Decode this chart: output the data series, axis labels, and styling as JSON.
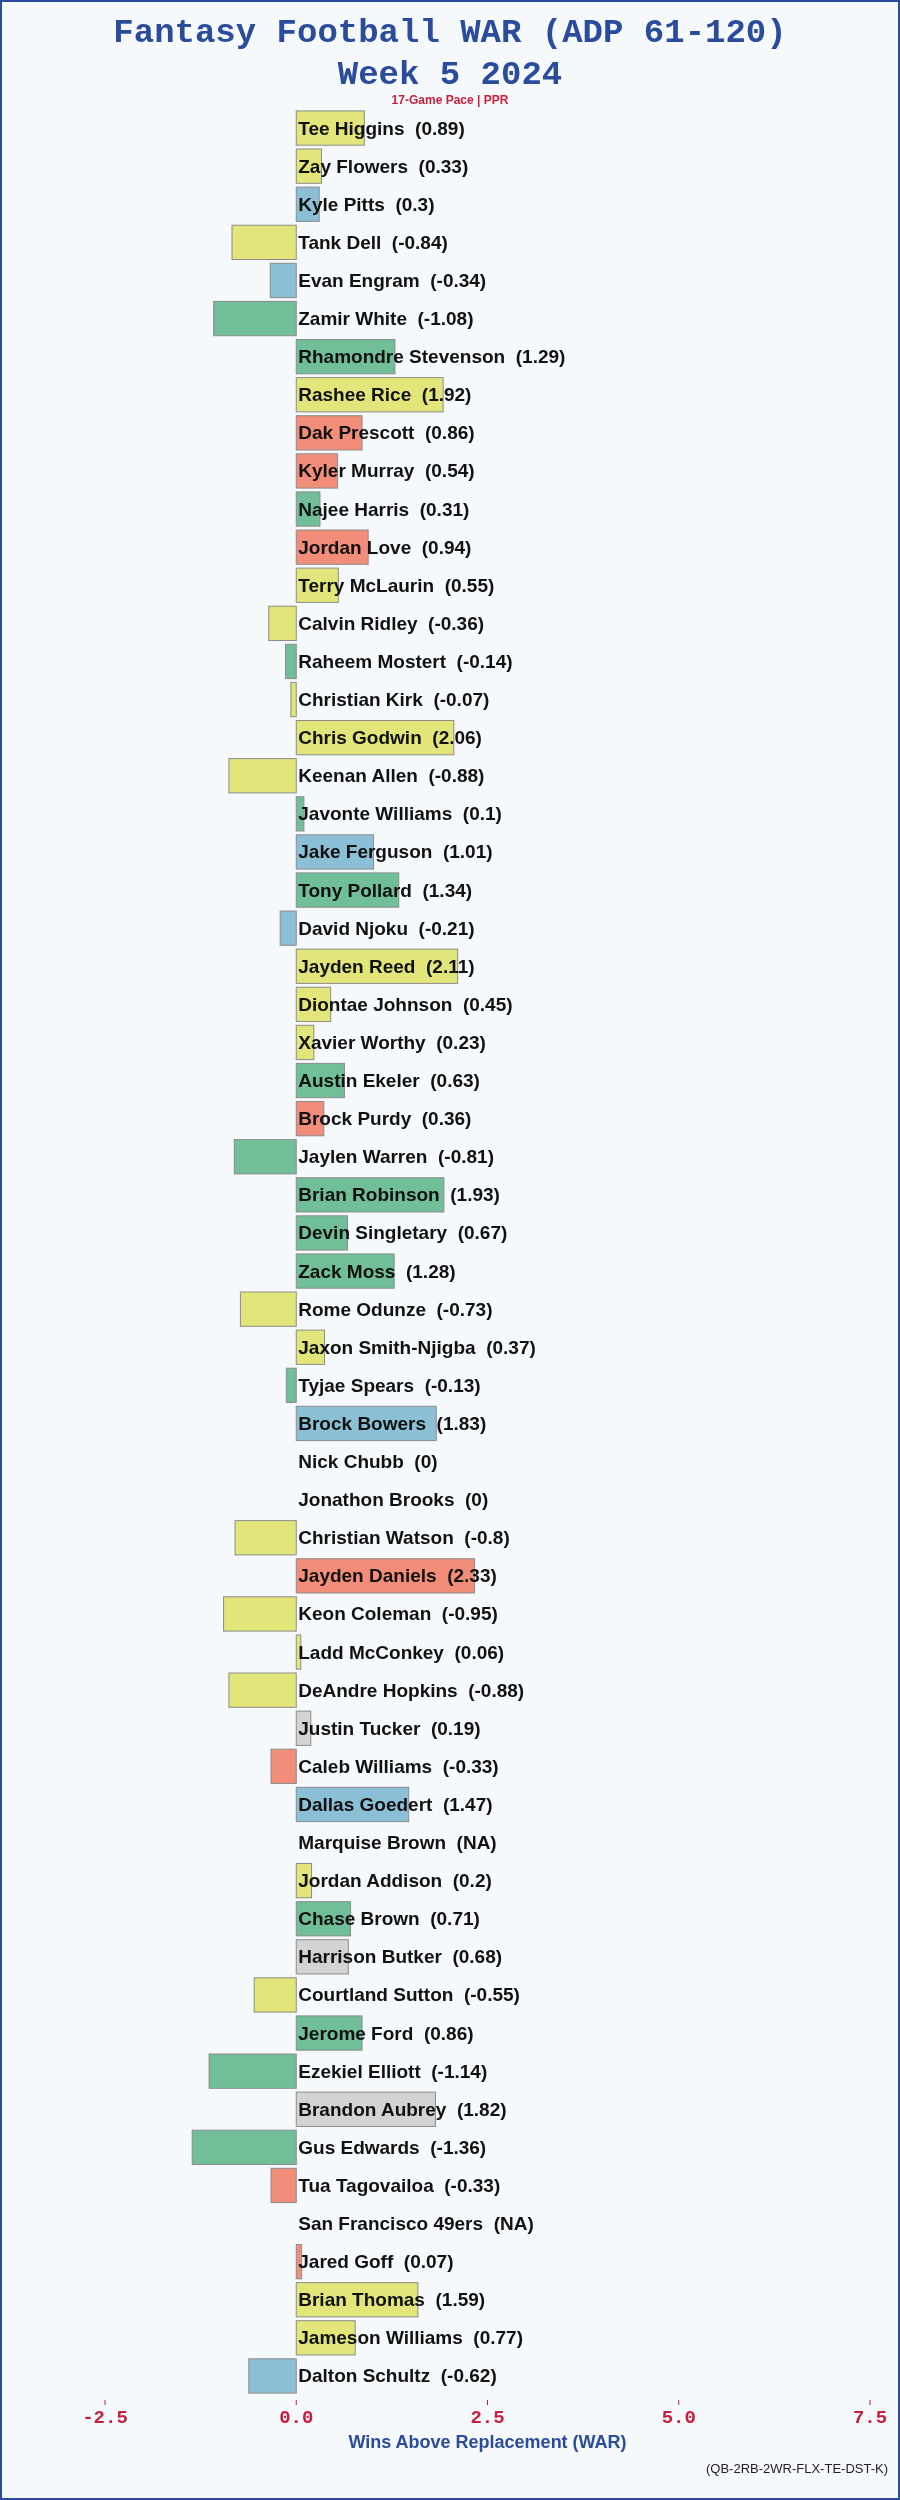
{
  "chart_data": {
    "type": "bar",
    "orientation": "horizontal",
    "title": "Fantasy Football WAR (ADP 61-120)\nWeek 5 2024",
    "subtitle": "17-Game Pace | PPR",
    "xlabel": "Wins Above Replacement (WAR)",
    "annotations": [
      "(QB-2RB-2WR-FLX-TE-DST-K)"
    ],
    "categories": [
      "Tee Higgins  (0.89)",
      "Zay Flowers  (0.33)",
      "Kyle Pitts  (0.3)",
      "Tank Dell  (-0.84)",
      "Evan Engram  (-0.34)",
      "Zamir White  (-1.08)",
      "Rhamondre Stevenson  (1.29)",
      "Rashee Rice  (1.92)",
      "Dak Prescott  (0.86)",
      "Kyler Murray  (0.54)",
      "Najee Harris  (0.31)",
      "Jordan Love  (0.94)",
      "Terry McLaurin  (0.55)",
      "Calvin Ridley  (-0.36)",
      "Raheem Mostert  (-0.14)",
      "Christian Kirk  (-0.07)",
      "Chris Godwin  (2.06)",
      "Keenan Allen  (-0.88)",
      "Javonte Williams  (0.1)",
      "Jake Ferguson  (1.01)",
      "Tony Pollard  (1.34)",
      "David Njoku  (-0.21)",
      "Jayden Reed  (2.11)",
      "Diontae Johnson  (0.45)",
      "Xavier Worthy  (0.23)",
      "Austin Ekeler  (0.63)",
      "Brock Purdy  (0.36)",
      "Jaylen Warren  (-0.81)",
      "Brian Robinson  (1.93)",
      "Devin Singletary  (0.67)",
      "Zack Moss  (1.28)",
      "Rome Odunze  (-0.73)",
      "Jaxon Smith-Njigba  (0.37)",
      "Tyjae Spears  (-0.13)",
      "Brock Bowers  (1.83)",
      "Nick Chubb  (0)",
      "Jonathon Brooks  (0)",
      "Christian Watson  (-0.8)",
      "Jayden Daniels  (2.33)",
      "Keon Coleman  (-0.95)",
      "Ladd McConkey  (0.06)",
      "DeAndre Hopkins  (-0.88)",
      "Justin Tucker  (0.19)",
      "Caleb Williams  (-0.33)",
      "Dallas Goedert  (1.47)",
      "Marquise Brown  (NA)",
      "Jordan Addison  (0.2)",
      "Chase Brown  (0.71)",
      "Harrison Butker  (0.68)",
      "Courtland Sutton  (-0.55)",
      "Jerome Ford  (0.86)",
      "Ezekiel Elliott  (-1.14)",
      "Brandon Aubrey  (1.82)",
      "Gus Edwards  (-1.36)",
      "Tua Tagovailoa  (-0.33)",
      "San Francisco 49ers  (NA)",
      "Jared Goff  (0.07)",
      "Brian Thomas  (1.59)",
      "Jameson Williams  (0.77)",
      "Dalton Schultz  (-0.62)"
    ],
    "values": [
      0.89,
      0.33,
      0.3,
      -0.84,
      -0.34,
      -1.08,
      1.29,
      1.92,
      0.86,
      0.54,
      0.31,
      0.94,
      0.55,
      -0.36,
      -0.14,
      -0.07,
      2.06,
      -0.88,
      0.1,
      1.01,
      1.34,
      -0.21,
      2.11,
      0.45,
      0.23,
      0.63,
      0.36,
      -0.81,
      1.93,
      0.67,
      1.28,
      -0.73,
      0.37,
      -0.13,
      1.83,
      0,
      0,
      -0.8,
      2.33,
      -0.95,
      0.06,
      -0.88,
      0.19,
      -0.33,
      1.47,
      null,
      0.2,
      0.71,
      0.68,
      -0.55,
      0.86,
      -1.14,
      1.82,
      -1.36,
      -0.33,
      null,
      0.07,
      1.59,
      0.77,
      -0.62
    ],
    "colors": [
      "#e1e57a",
      "#e1e57a",
      "#8bbfd6",
      "#e1e57a",
      "#8bbfd6",
      "#70bf98",
      "#70bf98",
      "#e1e57a",
      "#f28d7a",
      "#f28d7a",
      "#70bf98",
      "#f28d7a",
      "#e1e57a",
      "#e1e57a",
      "#70bf98",
      "#e1e57a",
      "#e1e57a",
      "#e1e57a",
      "#70bf98",
      "#8bbfd6",
      "#70bf98",
      "#8bbfd6",
      "#e1e57a",
      "#e1e57a",
      "#e1e57a",
      "#70bf98",
      "#f28d7a",
      "#70bf98",
      "#70bf98",
      "#70bf98",
      "#70bf98",
      "#e1e57a",
      "#e1e57a",
      "#70bf98",
      "#8bbfd6",
      null,
      null,
      "#e1e57a",
      "#f28d7a",
      "#e1e57a",
      "#e1e57a",
      "#e1e57a",
      "#d3d3d3",
      "#f28d7a",
      "#8bbfd6",
      null,
      "#e1e57a",
      "#70bf98",
      "#d3d3d3",
      "#e1e57a",
      "#70bf98",
      "#70bf98",
      "#d3d3d3",
      "#70bf98",
      "#f28d7a",
      null,
      "#f28d7a",
      "#e1e57a",
      "#e1e57a",
      "#8bbfd6"
    ],
    "xlim": [
      -2.5,
      7.5
    ],
    "xticks": [
      -2.5,
      {
        "value": 0,
        "label": "0.0"
      },
      2.5,
      {
        "value": 5,
        "label": "5.0"
      },
      7.5
    ]
  }
}
